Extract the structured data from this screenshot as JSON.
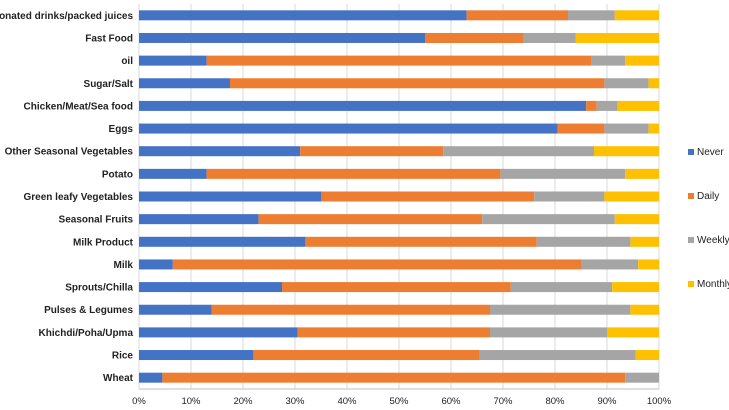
{
  "chart_data": {
    "type": "bar",
    "orientation": "horizontal",
    "stacked": "percent",
    "title": "",
    "xlabel": "",
    "ylabel": "",
    "xlim": [
      0,
      100
    ],
    "tick_labels": [
      "0%",
      "10%",
      "20%",
      "30%",
      "40%",
      "50%",
      "60%",
      "70%",
      "80%",
      "90%",
      "100%"
    ],
    "grid": true,
    "legend_position": "right",
    "categories": [
      "Carbonated drinks/packed juices",
      "Fast Food",
      "oil",
      "Sugar/Salt",
      "Chicken/Meat/Sea food",
      "Eggs",
      "Other Seasonal Vegetables",
      "Potato",
      "Green leafy Vegetables",
      "Seasonal Fruits",
      "Milk Product",
      "Milk",
      "Sprouts/Chilla",
      "Pulses & Legumes",
      "Khichdi/Poha/Upma",
      "Rice",
      "Wheat"
    ],
    "series": [
      {
        "name": "Never",
        "color": "#4472C4",
        "values": [
          63,
          55,
          13,
          17.5,
          86,
          80.5,
          31,
          13,
          35,
          23,
          32,
          6.5,
          27.5,
          14,
          30.5,
          22,
          4.5
        ]
      },
      {
        "name": "Daily",
        "color": "#ED7D31",
        "values": [
          19.5,
          19,
          74,
          72,
          2,
          9,
          27.5,
          56.5,
          41,
          43,
          44.5,
          78.5,
          44,
          53.5,
          37,
          43.5,
          89
        ]
      },
      {
        "name": "Weekly",
        "color": "#A5A5A5",
        "values": [
          9,
          10,
          6.5,
          8.5,
          4,
          8.5,
          29,
          24,
          13.5,
          25.5,
          18,
          11,
          19.5,
          27,
          22.5,
          30,
          6.5
        ]
      },
      {
        "name": "Monthly",
        "color": "#FFC000",
        "values": [
          8.5,
          16,
          6.5,
          2,
          8,
          2,
          12.5,
          6.5,
          10.5,
          8.5,
          5.5,
          4,
          9,
          5.5,
          10,
          4.5,
          0
        ]
      }
    ]
  }
}
